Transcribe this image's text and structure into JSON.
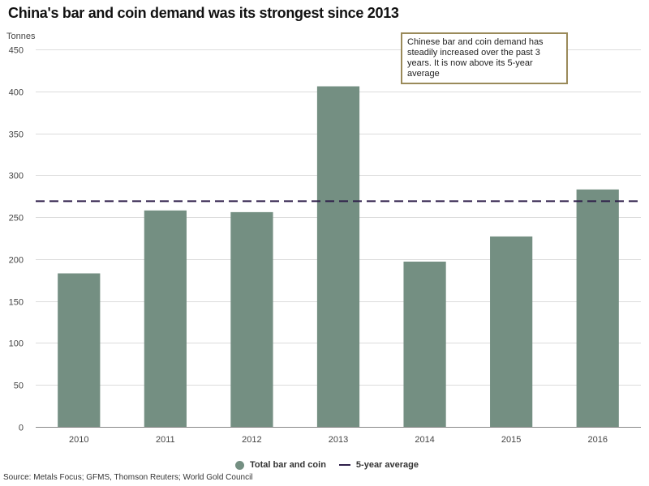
{
  "title": "China's bar and coin demand was its strongest since 2013",
  "unit_label": "Tonnes",
  "annotation": "Chinese bar and coin demand has steadily increased over the past 3 years. It is now above its 5-year average",
  "source": "Source: Metals Focus; GFMS, Thomson Reuters; World Gold Council",
  "colors": {
    "bar": "#748f82",
    "average_line": "#2e1f4a",
    "grid": "#dcdcdc",
    "annotation_border": "#9a8a5a"
  },
  "chart_data": {
    "type": "bar",
    "categories": [
      "2010",
      "2011",
      "2012",
      "2013",
      "2014",
      "2015",
      "2016"
    ],
    "series": [
      {
        "name": "Total bar and coin",
        "values": [
          183,
          258,
          256,
          406,
          197,
          227,
          283
        ]
      }
    ],
    "reference_lines": [
      {
        "name": "5-year average",
        "value": 269,
        "style": "dashed"
      }
    ],
    "ylabel": "Tonnes",
    "ylim": [
      0,
      450
    ],
    "yticks": [
      0,
      50,
      100,
      150,
      200,
      250,
      300,
      350,
      400,
      450
    ],
    "grid": true,
    "legend": {
      "position": "bottom-center",
      "items": [
        "Total bar and coin",
        "5-year average"
      ]
    }
  }
}
